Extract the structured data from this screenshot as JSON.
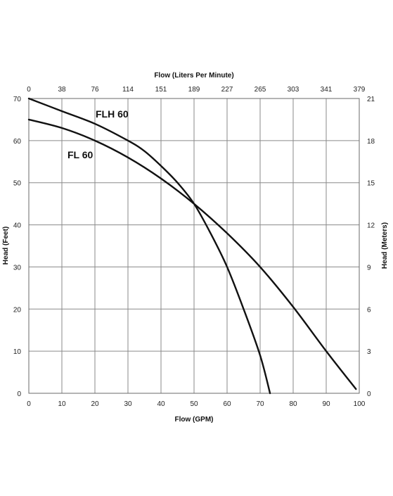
{
  "chart_data": {
    "type": "line",
    "xlabel": "Flow (GPM)",
    "x2label": "Flow (Liters Per Minute)",
    "ylabel": "Head (Feet)",
    "y2label": "Head (Meters)",
    "xlim": [
      0,
      100
    ],
    "ylim": [
      0,
      70
    ],
    "y2lim": [
      0,
      21
    ],
    "grid": true,
    "x_ticks": [
      "0",
      "10",
      "20",
      "30",
      "40",
      "50",
      "60",
      "70",
      "80",
      "90",
      "100"
    ],
    "x2_ticks": [
      "0",
      "38",
      "76",
      "114",
      "151",
      "189",
      "227",
      "265",
      "303",
      "341",
      "379"
    ],
    "y_ticks": [
      "0",
      "10",
      "20",
      "30",
      "40",
      "50",
      "60",
      "70"
    ],
    "y2_ticks": [
      "0",
      "3",
      "6",
      "9",
      "12",
      "15",
      "18",
      "21"
    ],
    "series": [
      {
        "name": "FLH 60",
        "x": [
          0,
          10,
          20,
          30,
          35,
          40,
          45,
          50,
          55,
          60,
          65,
          70,
          73
        ],
        "y": [
          70,
          67,
          64,
          60,
          57.5,
          54,
          50,
          45,
          38,
          30,
          20,
          9,
          0
        ]
      },
      {
        "name": "FL 60",
        "x": [
          0,
          10,
          20,
          30,
          40,
          50,
          60,
          70,
          80,
          90,
          99
        ],
        "y": [
          65,
          63,
          60,
          56,
          51,
          45,
          38,
          30,
          20.5,
          10,
          1
        ]
      }
    ]
  }
}
